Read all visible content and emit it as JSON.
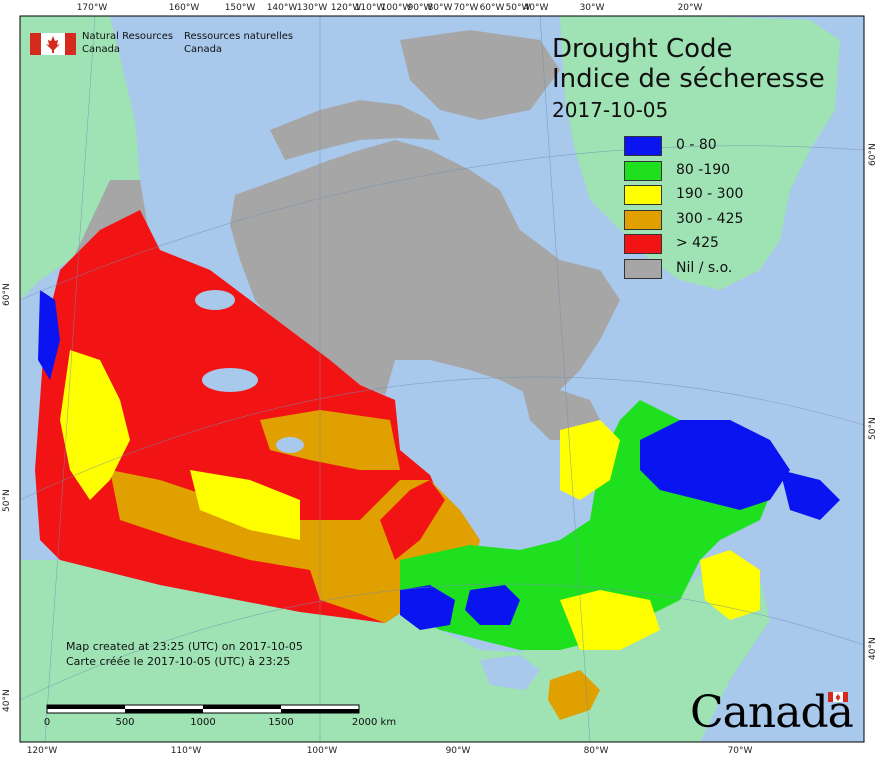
{
  "title": {
    "en": "Drought Code",
    "fr": "Indice de sécheresse",
    "date": "2017-10-05"
  },
  "agency": {
    "en_line1": "Natural Resources",
    "en_line2": "Canada",
    "fr_line1": "Ressources naturelles",
    "fr_line2": "Canada"
  },
  "legend": [
    {
      "label": "0 - 80",
      "color": "#0a14f0"
    },
    {
      "label": "80 -190",
      "color": "#1fe01f"
    },
    {
      "label": "190 - 300",
      "color": "#ffff00"
    },
    {
      "label": "300 - 425",
      "color": "#e0a000"
    },
    {
      "label": "> 425",
      "color": "#f21414"
    },
    {
      "label": "Nil / s.o.",
      "color": "#a6a6a6"
    }
  ],
  "credit": {
    "en": "Map created at 23:25 (UTC) on 2017-10-05",
    "fr": "Carte créée le 2017-10-05 (UTC) à 23:25"
  },
  "scale_bar": {
    "labels": [
      "0",
      "500",
      "1000",
      "1500",
      "2000  km"
    ]
  },
  "wordmark": "Canada",
  "graticule": {
    "top": [
      "170°W",
      "160°W",
      "150°W",
      "140°W",
      "130°W",
      "120°W",
      "110°W",
      "100°W",
      "90°W",
      "80°W",
      "70°W",
      "60°W",
      "50°W",
      "40°W",
      "30°W",
      "20°W"
    ],
    "bottom": [
      "120°W",
      "110°W",
      "100°W",
      "90°W",
      "80°W",
      "70°W"
    ],
    "left": [
      "60°N",
      "50°N",
      "40°N"
    ],
    "right": [
      "60°N",
      "50°N",
      "40°N"
    ]
  },
  "colors": {
    "ocean": "#a8c8ec",
    "land_other": "#9fe3b4",
    "nil": "#a6a6a6"
  }
}
